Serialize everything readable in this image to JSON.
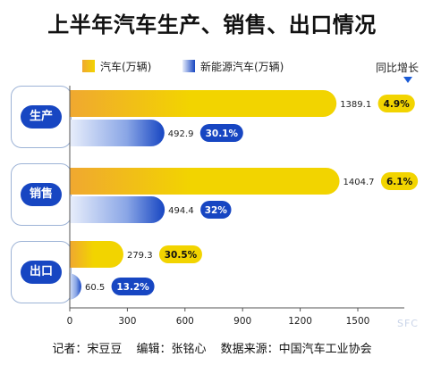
{
  "title": "上半年汽车生产、销售、出口情况",
  "legend": {
    "car": "汽车(万辆)",
    "nev": "新能源汽车(万辆)",
    "growth": "同比增长"
  },
  "colors": {
    "car_bar": "#f2d400",
    "car_bar_start": "#f0a830",
    "nev_bar": "#1746c2",
    "nev_bar_start": "#e8eefb",
    "group_label_bg": "#1746c2",
    "car_growth_bg": "#f2d400",
    "nev_growth_bg": "#1746c2",
    "group_border": "#9db3d6"
  },
  "chart_data": {
    "type": "bar",
    "orientation": "horizontal",
    "categories": [
      "生产",
      "销售",
      "出口"
    ],
    "series": [
      {
        "name": "汽车(万辆)",
        "values": [
          1389.1,
          1404.7,
          279.3
        ],
        "growth": [
          "4.9%",
          "6.1%",
          "30.5%"
        ]
      },
      {
        "name": "新能源汽车(万辆)",
        "values": [
          492.9,
          494.4,
          60.5
        ],
        "growth": [
          "30.1%",
          "32%",
          "13.2%"
        ]
      }
    ],
    "value_labels": [
      [
        "1389.1",
        "1404.7",
        "279.3"
      ],
      [
        "492.9",
        "494.4",
        "60.5"
      ]
    ],
    "xticks": [
      0,
      300,
      600,
      900,
      1200,
      1500
    ],
    "xlim": [
      0,
      1500
    ],
    "title": "上半年汽车生产、销售、出口情况",
    "xlabel": "",
    "ylabel": "",
    "grid": false,
    "legend_position": "top"
  },
  "footer": {
    "reporter": "记者：宋豆豆",
    "editor": "编辑：张铭心",
    "source": "数据来源：中国汽车工业协会"
  },
  "watermark": "SFC"
}
